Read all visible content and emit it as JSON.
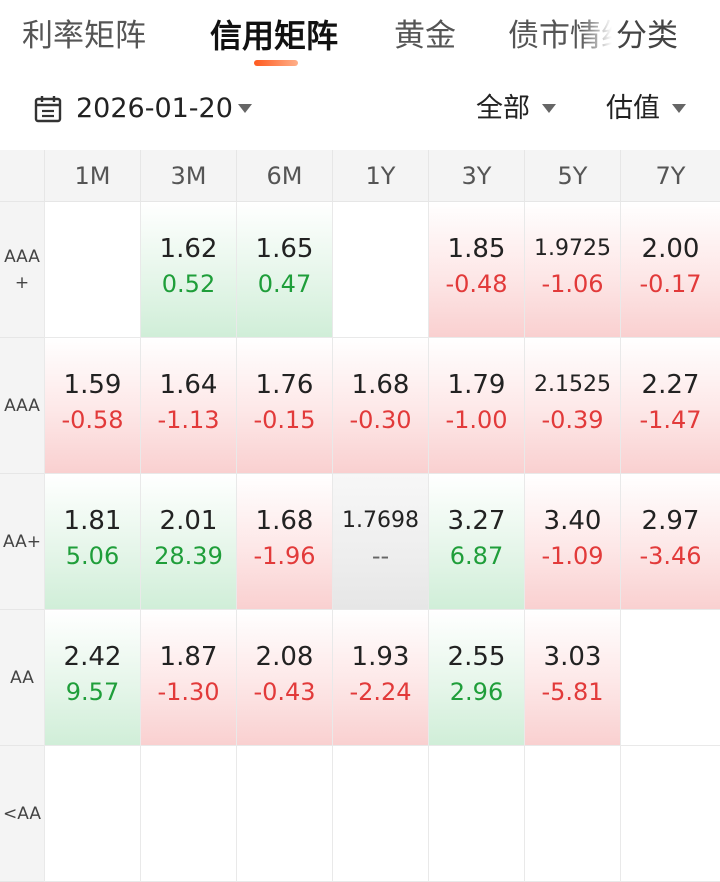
{
  "tabs": [
    {
      "label": "利率矩阵",
      "active": false
    },
    {
      "label": "信用矩阵",
      "active": true
    },
    {
      "label": "黄金",
      "active": false
    },
    {
      "label": "债市情绪",
      "active": false
    }
  ],
  "tab_more": "分类",
  "filters": {
    "date": "2026-01-20",
    "scope": "全部",
    "metric": "估值"
  },
  "columns": [
    "1M",
    "3M",
    "6M",
    "1Y",
    "3Y",
    "5Y",
    "7Y"
  ],
  "rows": [
    {
      "label": "AAA+",
      "cells": [
        {
          "yield": "",
          "change": "",
          "trend": "empty"
        },
        {
          "yield": "1.62",
          "change": "0.52",
          "trend": "down"
        },
        {
          "yield": "1.65",
          "change": "0.47",
          "trend": "down"
        },
        {
          "yield": "",
          "change": "",
          "trend": "empty"
        },
        {
          "yield": "1.85",
          "change": "-0.48",
          "trend": "up"
        },
        {
          "yield": "1.9725",
          "change": "-1.06",
          "trend": "up"
        },
        {
          "yield": "2.00",
          "change": "-0.17",
          "trend": "up"
        }
      ]
    },
    {
      "label": "AAA",
      "cells": [
        {
          "yield": "1.59",
          "change": "-0.58",
          "trend": "up"
        },
        {
          "yield": "1.64",
          "change": "-1.13",
          "trend": "up"
        },
        {
          "yield": "1.76",
          "change": "-0.15",
          "trend": "up"
        },
        {
          "yield": "1.68",
          "change": "-0.30",
          "trend": "up"
        },
        {
          "yield": "1.79",
          "change": "-1.00",
          "trend": "up"
        },
        {
          "yield": "2.1525",
          "change": "-0.39",
          "trend": "up"
        },
        {
          "yield": "2.27",
          "change": "-1.47",
          "trend": "up"
        }
      ]
    },
    {
      "label": "AA+",
      "cells": [
        {
          "yield": "1.81",
          "change": "5.06",
          "trend": "down"
        },
        {
          "yield": "2.01",
          "change": "28.39",
          "trend": "down"
        },
        {
          "yield": "1.68",
          "change": "-1.96",
          "trend": "up"
        },
        {
          "yield": "1.7698",
          "change": "--",
          "trend": "flat"
        },
        {
          "yield": "3.27",
          "change": "6.87",
          "trend": "down"
        },
        {
          "yield": "3.40",
          "change": "-1.09",
          "trend": "up"
        },
        {
          "yield": "2.97",
          "change": "-3.46",
          "trend": "up"
        }
      ]
    },
    {
      "label": "AA",
      "cells": [
        {
          "yield": "2.42",
          "change": "9.57",
          "trend": "down"
        },
        {
          "yield": "1.87",
          "change": "-1.30",
          "trend": "up"
        },
        {
          "yield": "2.08",
          "change": "-0.43",
          "trend": "up"
        },
        {
          "yield": "1.93",
          "change": "-2.24",
          "trend": "up"
        },
        {
          "yield": "2.55",
          "change": "2.96",
          "trend": "down"
        },
        {
          "yield": "3.03",
          "change": "-5.81",
          "trend": "up"
        },
        {
          "yield": "",
          "change": "",
          "trend": "empty"
        }
      ]
    },
    {
      "label": "<AA",
      "cells": [
        {
          "yield": "",
          "change": "",
          "trend": "empty"
        },
        {
          "yield": "",
          "change": "",
          "trend": "empty"
        },
        {
          "yield": "",
          "change": "",
          "trend": "empty"
        },
        {
          "yield": "",
          "change": "",
          "trend": "empty"
        },
        {
          "yield": "",
          "change": "",
          "trend": "empty"
        },
        {
          "yield": "",
          "change": "",
          "trend": "empty"
        },
        {
          "yield": "",
          "change": "",
          "trend": "empty"
        }
      ]
    }
  ],
  "icons": {
    "date": "calendar-icon",
    "dropdown": "caret-down-icon"
  }
}
